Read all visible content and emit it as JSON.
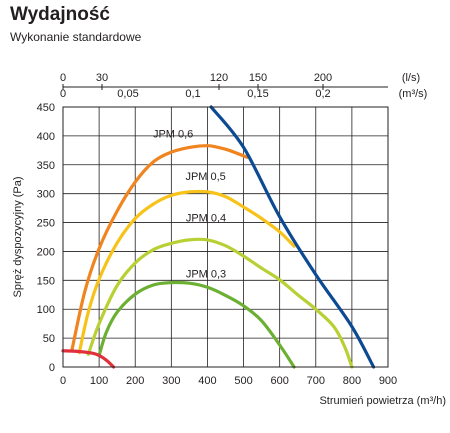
{
  "header": {
    "title": "Wydajność",
    "subtitle": "Wykonanie standardowe"
  },
  "chart_data": {
    "type": "line",
    "title": "Wydajność",
    "subtitle": "Wykonanie standardowe",
    "xlabel": "Strumień powietrza (m³/h)",
    "ylabel": "Spręż dyspozycyjny (Pa)",
    "xlim": [
      0,
      900
    ],
    "ylim": [
      0,
      450
    ],
    "x_ticks": [
      "0",
      "100",
      "200",
      "300",
      "400",
      "500",
      "600",
      "700",
      "800",
      "900"
    ],
    "y_ticks": [
      "0",
      "50",
      "100",
      "150",
      "200",
      "250",
      "300",
      "350",
      "400",
      "450"
    ],
    "top_axis_ls": {
      "unit": "(l/s)",
      "ticks": [
        {
          "label": "0",
          "m3h": 0
        },
        {
          "label": "30",
          "m3h": 108
        },
        {
          "label": "120",
          "m3h": 432
        },
        {
          "label": "150",
          "m3h": 540
        },
        {
          "label": "200",
          "m3h": 720
        }
      ]
    },
    "top_axis_m3s": {
      "unit": "(m³/s)",
      "ticks": [
        {
          "label": "0",
          "m3h": 0
        },
        {
          "label": "0,05",
          "m3h": 180
        },
        {
          "label": "0,1",
          "m3h": 360
        },
        {
          "label": "0,15",
          "m3h": 540
        },
        {
          "label": "0,2",
          "m3h": 720
        }
      ]
    },
    "grid": true,
    "series": [
      {
        "name": "JPM 0,6",
        "color": "#f0841f",
        "label_at": [
          305,
          397
        ],
        "x": [
          25,
          60,
          100,
          150,
          200,
          250,
          300,
          350,
          400,
          430,
          460,
          510
        ],
        "y": [
          30,
          130,
          205,
          270,
          320,
          355,
          372,
          380,
          383,
          380,
          375,
          363
        ]
      },
      {
        "name": "JPM 0,5",
        "color": "#f7c31b",
        "label_at": [
          395,
          324
        ],
        "x": [
          45,
          70,
          100,
          150,
          200,
          250,
          300,
          350,
          400,
          450,
          500,
          550,
          600,
          640
        ],
        "y": [
          25,
          95,
          152,
          215,
          257,
          282,
          297,
          303,
          303,
          295,
          277,
          257,
          234,
          209
        ]
      },
      {
        "name": "JPM 0,4",
        "color": "#b9d034",
        "label_at": [
          396,
          252
        ],
        "x": [
          70,
          100,
          150,
          200,
          250,
          300,
          350,
          400,
          450,
          500,
          550,
          600,
          650,
          700,
          750,
          780,
          800
        ],
        "y": [
          22,
          75,
          141,
          180,
          203,
          214,
          220,
          220,
          210,
          192,
          171,
          151,
          125,
          100,
          70,
          35,
          0
        ]
      },
      {
        "name": "JPM 0,3",
        "color": "#6bb033",
        "label_at": [
          396,
          155
        ],
        "x": [
          100,
          120,
          150,
          200,
          250,
          300,
          350,
          400,
          450,
          500,
          550,
          600,
          640
        ],
        "y": [
          20,
          60,
          95,
          126,
          142,
          146,
          145,
          138,
          124,
          106,
          80,
          38,
          0
        ]
      },
      {
        "name": "",
        "color": "#0d4a94",
        "x": [
          410,
          500,
          600,
          700,
          800,
          860
        ],
        "y": [
          450,
          380,
          260,
          160,
          70,
          0
        ]
      },
      {
        "name": "",
        "color": "#e0303c",
        "x": [
          0,
          40,
          80,
          100,
          120,
          140
        ],
        "y": [
          28,
          27,
          24,
          20,
          12,
          0
        ]
      }
    ]
  }
}
